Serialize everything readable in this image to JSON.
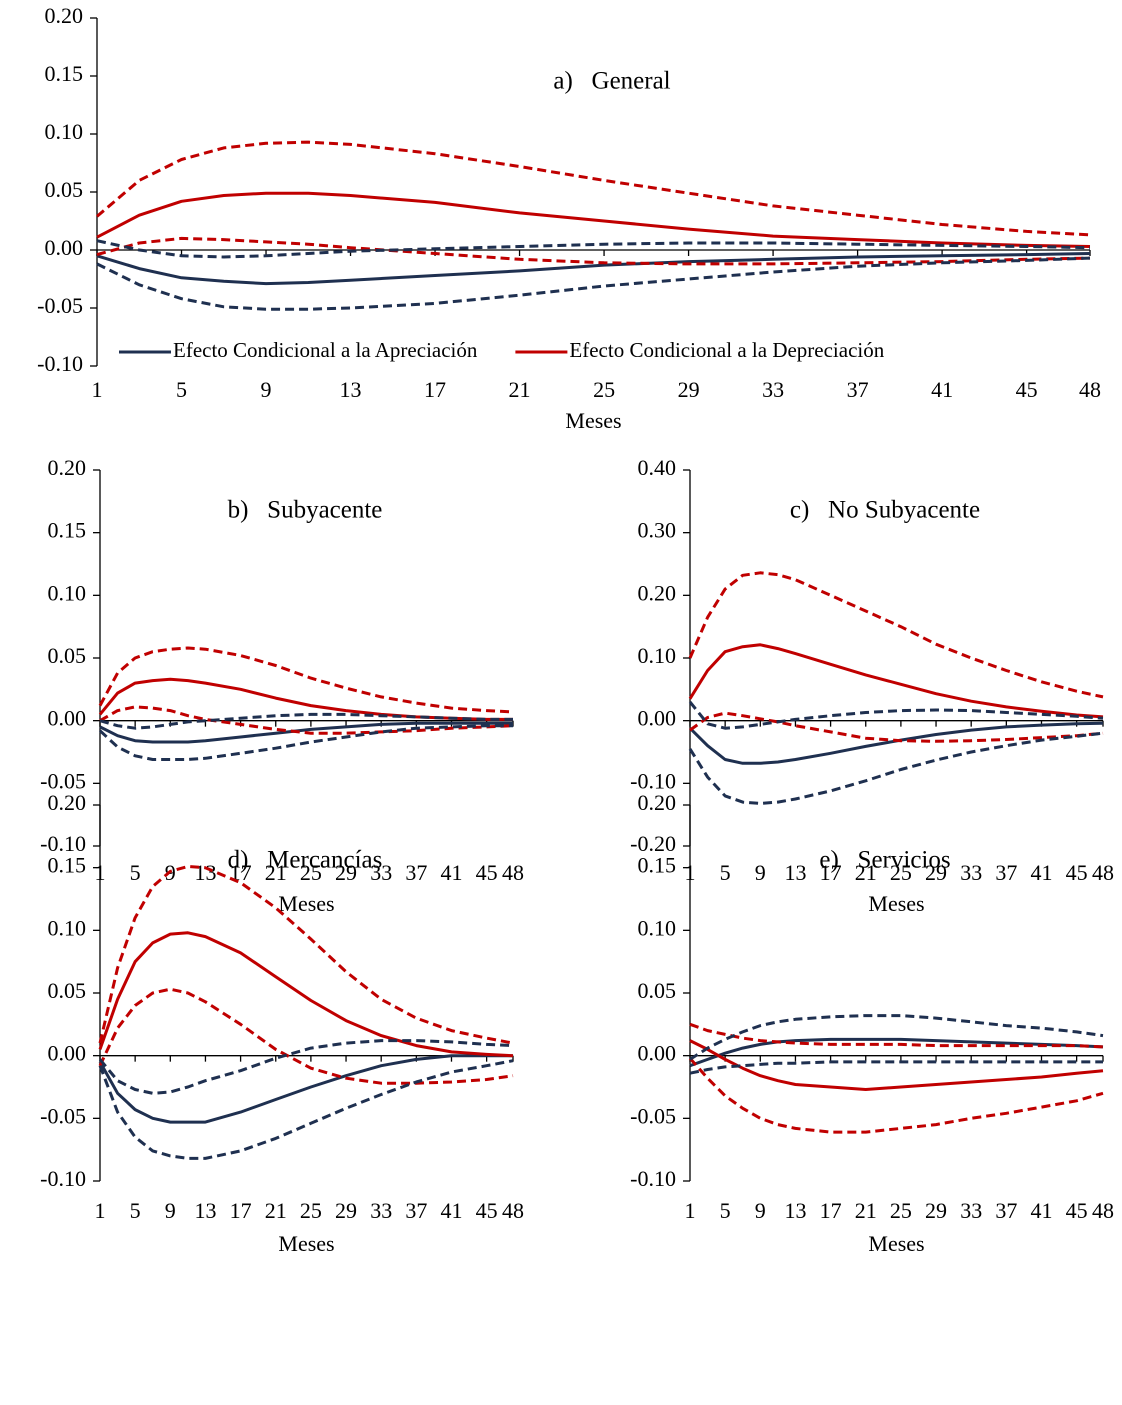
{
  "chart_data": [
    {
      "type": "line",
      "title": "a)   General",
      "xlabel": "Meses",
      "legend": "bottom",
      "x": [
        1,
        3,
        5,
        7,
        9,
        11,
        13,
        17,
        21,
        25,
        29,
        33,
        37,
        41,
        45,
        48
      ],
      "xlim": [
        1,
        48
      ],
      "xticks": [
        1,
        5,
        9,
        13,
        17,
        21,
        25,
        29,
        33,
        37,
        41,
        45,
        48
      ],
      "ylim": [
        -0.1,
        0.2
      ],
      "yticks": [
        {
          "value": -0.1,
          "label": "-0.10"
        },
        {
          "value": -0.05,
          "label": "-0.05"
        },
        {
          "value": 0,
          "label": "0.00"
        },
        {
          "value": 0.05,
          "label": "0.05"
        },
        {
          "value": 0.1,
          "label": "0.10"
        },
        {
          "value": 0.15,
          "label": "0.15"
        },
        {
          "value": 0.2,
          "label": "0.20"
        }
      ],
      "series": [
        {
          "name": "Efecto Condicional a la Apreciación",
          "color": "#1f3050",
          "dashed": false,
          "values": [
            -0.005,
            -0.016,
            -0.024,
            -0.027,
            -0.029,
            -0.028,
            -0.026,
            -0.022,
            -0.018,
            -0.013,
            -0.01,
            -0.008,
            -0.006,
            -0.005,
            -0.004,
            -0.003
          ]
        },
        {
          "name": "Efecto Condicional a la Depreciación",
          "color": "#c00000",
          "dashed": false,
          "values": [
            0.011,
            0.03,
            0.042,
            0.047,
            0.049,
            0.049,
            0.047,
            0.041,
            0.032,
            0.025,
            0.018,
            0.012,
            0.009,
            0.006,
            0.004,
            0.003
          ]
        },
        {
          "color": "#c00000",
          "dashed": true,
          "values": [
            0.029,
            0.06,
            0.078,
            0.088,
            0.092,
            0.093,
            0.091,
            0.083,
            0.072,
            0.06,
            0.049,
            0.038,
            0.03,
            0.022,
            0.016,
            0.013
          ]
        },
        {
          "color": "#c00000",
          "dashed": true,
          "values": [
            -0.004,
            0.006,
            0.01,
            0.009,
            0.007,
            0.005,
            0.002,
            -0.003,
            -0.008,
            -0.011,
            -0.012,
            -0.012,
            -0.011,
            -0.01,
            -0.008,
            -0.007
          ]
        },
        {
          "color": "#1f3050",
          "dashed": true,
          "values": [
            0.008,
            0.0,
            -0.005,
            -0.006,
            -0.005,
            -0.003,
            -0.001,
            0.001,
            0.003,
            0.005,
            0.006,
            0.006,
            0.005,
            0.004,
            0.003,
            0.002
          ]
        },
        {
          "color": "#1f3050",
          "dashed": true,
          "values": [
            -0.012,
            -0.03,
            -0.042,
            -0.049,
            -0.051,
            -0.051,
            -0.05,
            -0.046,
            -0.039,
            -0.031,
            -0.025,
            -0.019,
            -0.014,
            -0.011,
            -0.009,
            -0.007
          ]
        }
      ]
    },
    {
      "type": "line",
      "title": "b)   Subyacente",
      "xlabel": "Meses",
      "x": [
        1,
        3,
        5,
        7,
        9,
        11,
        13,
        17,
        21,
        25,
        29,
        33,
        37,
        41,
        45,
        48
      ],
      "xlim": [
        1,
        48
      ],
      "xticks": [
        1,
        5,
        9,
        13,
        17,
        21,
        25,
        29,
        33,
        37,
        41,
        45,
        48
      ],
      "ylim": [
        -0.1,
        0.2
      ],
      "yticks": [
        {
          "value": -0.1,
          "label": "-0.10"
        },
        {
          "value": -0.05,
          "label": "-0.05"
        },
        {
          "value": 0,
          "label": "0.00"
        },
        {
          "value": 0.05,
          "label": "0.05"
        },
        {
          "value": 0.1,
          "label": "0.10"
        },
        {
          "value": 0.15,
          "label": "0.15"
        },
        {
          "value": 0.2,
          "label": "0.20"
        }
      ],
      "series": [
        {
          "color": "#1f3050",
          "dashed": false,
          "values": [
            -0.005,
            -0.012,
            -0.016,
            -0.017,
            -0.017,
            -0.017,
            -0.016,
            -0.013,
            -0.01,
            -0.007,
            -0.005,
            -0.003,
            -0.002,
            -0.002,
            -0.002,
            -0.002
          ]
        },
        {
          "color": "#c00000",
          "dashed": false,
          "values": [
            0.005,
            0.022,
            0.03,
            0.032,
            0.033,
            0.032,
            0.03,
            0.025,
            0.018,
            0.012,
            0.008,
            0.005,
            0.003,
            0.002,
            0.001,
            0.001
          ]
        },
        {
          "color": "#c00000",
          "dashed": true,
          "values": [
            0.012,
            0.038,
            0.05,
            0.055,
            0.057,
            0.058,
            0.057,
            0.052,
            0.044,
            0.034,
            0.026,
            0.019,
            0.014,
            0.01,
            0.008,
            0.007
          ]
        },
        {
          "color": "#c00000",
          "dashed": true,
          "values": [
            0.0,
            0.008,
            0.011,
            0.01,
            0.008,
            0.004,
            0.001,
            -0.003,
            -0.007,
            -0.01,
            -0.01,
            -0.009,
            -0.008,
            -0.006,
            -0.005,
            -0.004
          ]
        },
        {
          "color": "#1f3050",
          "dashed": true,
          "values": [
            0.0,
            -0.004,
            -0.006,
            -0.005,
            -0.003,
            -0.001,
            0.0,
            0.002,
            0.004,
            0.005,
            0.005,
            0.004,
            0.003,
            0.002,
            0.001,
            0.001
          ]
        },
        {
          "color": "#1f3050",
          "dashed": true,
          "values": [
            -0.008,
            -0.021,
            -0.028,
            -0.031,
            -0.031,
            -0.031,
            -0.03,
            -0.026,
            -0.022,
            -0.017,
            -0.013,
            -0.009,
            -0.006,
            -0.005,
            -0.004,
            -0.004
          ]
        }
      ]
    },
    {
      "type": "line",
      "title": "c)   No Subyacente",
      "xlabel": "Meses",
      "x": [
        1,
        3,
        5,
        7,
        9,
        11,
        13,
        17,
        21,
        25,
        29,
        33,
        37,
        41,
        45,
        48
      ],
      "xlim": [
        1,
        48
      ],
      "xticks": [
        1,
        5,
        9,
        13,
        17,
        21,
        25,
        29,
        33,
        37,
        41,
        45,
        48
      ],
      "ylim": [
        -0.2,
        0.4
      ],
      "yticks": [
        {
          "value": -0.2,
          "label": "-0.20"
        },
        {
          "value": -0.1,
          "label": "-0.10"
        },
        {
          "value": 0,
          "label": "0.00"
        },
        {
          "value": 0.1,
          "label": "0.10"
        },
        {
          "value": 0.2,
          "label": "0.20"
        },
        {
          "value": 0.3,
          "label": "0.30"
        },
        {
          "value": 0.4,
          "label": "0.40"
        }
      ],
      "series": [
        {
          "color": "#1f3050",
          "dashed": false,
          "values": [
            -0.012,
            -0.04,
            -0.062,
            -0.068,
            -0.068,
            -0.066,
            -0.062,
            -0.052,
            -0.041,
            -0.031,
            -0.022,
            -0.015,
            -0.01,
            -0.007,
            -0.005,
            -0.004
          ]
        },
        {
          "color": "#c00000",
          "dashed": false,
          "values": [
            0.035,
            0.08,
            0.11,
            0.118,
            0.121,
            0.115,
            0.107,
            0.09,
            0.073,
            0.058,
            0.043,
            0.031,
            0.022,
            0.015,
            0.009,
            0.006
          ]
        },
        {
          "color": "#c00000",
          "dashed": true,
          "values": [
            0.1,
            0.165,
            0.21,
            0.232,
            0.236,
            0.233,
            0.225,
            0.2,
            0.175,
            0.15,
            0.122,
            0.1,
            0.08,
            0.062,
            0.047,
            0.038
          ]
        },
        {
          "color": "#c00000",
          "dashed": true,
          "values": [
            -0.015,
            0.005,
            0.012,
            0.008,
            0.003,
            -0.002,
            -0.008,
            -0.018,
            -0.028,
            -0.032,
            -0.033,
            -0.032,
            -0.03,
            -0.027,
            -0.024,
            -0.02
          ]
        },
        {
          "color": "#1f3050",
          "dashed": true,
          "values": [
            0.03,
            -0.005,
            -0.012,
            -0.01,
            -0.006,
            -0.002,
            0.002,
            0.008,
            0.013,
            0.016,
            0.017,
            0.016,
            0.013,
            0.01,
            0.007,
            0.004
          ]
        },
        {
          "color": "#1f3050",
          "dashed": true,
          "values": [
            -0.045,
            -0.09,
            -0.12,
            -0.13,
            -0.132,
            -0.13,
            -0.125,
            -0.112,
            -0.096,
            -0.078,
            -0.063,
            -0.05,
            -0.04,
            -0.031,
            -0.025,
            -0.02
          ]
        }
      ]
    },
    {
      "type": "line",
      "title": "d)   Mercancías",
      "xlabel": "Meses",
      "x": [
        1,
        3,
        5,
        7,
        9,
        11,
        13,
        17,
        21,
        25,
        29,
        33,
        37,
        41,
        45,
        48
      ],
      "xlim": [
        1,
        48
      ],
      "xticks": [
        1,
        5,
        9,
        13,
        17,
        21,
        25,
        29,
        33,
        37,
        41,
        45,
        48
      ],
      "ylim": [
        -0.1,
        0.2
      ],
      "yticks": [
        {
          "value": -0.1,
          "label": "-0.10"
        },
        {
          "value": -0.05,
          "label": "-0.05"
        },
        {
          "value": 0,
          "label": "0.00"
        },
        {
          "value": 0.05,
          "label": "0.05"
        },
        {
          "value": 0.1,
          "label": "0.10"
        },
        {
          "value": 0.15,
          "label": "0.15"
        },
        {
          "value": 0.2,
          "label": "0.20"
        }
      ],
      "series": [
        {
          "color": "#1f3050",
          "dashed": false,
          "values": [
            -0.005,
            -0.03,
            -0.043,
            -0.05,
            -0.053,
            -0.053,
            -0.053,
            -0.045,
            -0.035,
            -0.025,
            -0.016,
            -0.008,
            -0.003,
            0.0,
            0.0,
            0.0
          ]
        },
        {
          "color": "#c00000",
          "dashed": false,
          "values": [
            0.005,
            0.045,
            0.075,
            0.09,
            0.097,
            0.098,
            0.095,
            0.082,
            0.063,
            0.044,
            0.028,
            0.016,
            0.008,
            0.003,
            0.001,
            0.0
          ]
        },
        {
          "color": "#c00000",
          "dashed": true,
          "values": [
            0.01,
            0.07,
            0.11,
            0.135,
            0.147,
            0.151,
            0.15,
            0.138,
            0.118,
            0.093,
            0.067,
            0.045,
            0.03,
            0.02,
            0.014,
            0.01
          ]
        },
        {
          "color": "#c00000",
          "dashed": true,
          "values": [
            -0.008,
            0.022,
            0.04,
            0.05,
            0.053,
            0.05,
            0.043,
            0.025,
            0.005,
            -0.01,
            -0.018,
            -0.022,
            -0.022,
            -0.021,
            -0.019,
            -0.016
          ]
        },
        {
          "color": "#1f3050",
          "dashed": true,
          "values": [
            -0.003,
            -0.02,
            -0.027,
            -0.03,
            -0.029,
            -0.025,
            -0.02,
            -0.012,
            -0.002,
            0.006,
            0.01,
            0.012,
            0.012,
            0.011,
            0.009,
            0.008
          ]
        },
        {
          "color": "#1f3050",
          "dashed": true,
          "values": [
            -0.008,
            -0.045,
            -0.065,
            -0.076,
            -0.08,
            -0.082,
            -0.082,
            -0.076,
            -0.066,
            -0.054,
            -0.042,
            -0.031,
            -0.021,
            -0.013,
            -0.008,
            -0.004
          ]
        }
      ]
    },
    {
      "type": "line",
      "title": "e)   Servicios",
      "xlabel": "Meses",
      "x": [
        1,
        3,
        5,
        7,
        9,
        11,
        13,
        17,
        21,
        25,
        29,
        33,
        37,
        41,
        45,
        48
      ],
      "xlim": [
        1,
        48
      ],
      "xticks": [
        1,
        5,
        9,
        13,
        17,
        21,
        25,
        29,
        33,
        37,
        41,
        45,
        48
      ],
      "ylim": [
        -0.1,
        0.2
      ],
      "yticks": [
        {
          "value": -0.1,
          "label": "-0.10"
        },
        {
          "value": -0.05,
          "label": "-0.05"
        },
        {
          "value": 0,
          "label": "0.00"
        },
        {
          "value": 0.05,
          "label": "0.05"
        },
        {
          "value": 0.1,
          "label": "0.10"
        },
        {
          "value": 0.15,
          "label": "0.15"
        },
        {
          "value": 0.2,
          "label": "0.20"
        }
      ],
      "series": [
        {
          "color": "#1f3050",
          "dashed": false,
          "values": [
            -0.008,
            -0.003,
            0.002,
            0.006,
            0.009,
            0.011,
            0.012,
            0.013,
            0.013,
            0.013,
            0.012,
            0.011,
            0.01,
            0.009,
            0.008,
            0.007
          ]
        },
        {
          "color": "#c00000",
          "dashed": false,
          "values": [
            0.012,
            0.005,
            -0.003,
            -0.01,
            -0.016,
            -0.02,
            -0.023,
            -0.025,
            -0.027,
            -0.025,
            -0.023,
            -0.021,
            -0.019,
            -0.017,
            -0.014,
            -0.012
          ]
        },
        {
          "color": "#c00000",
          "dashed": true,
          "values": [
            0.025,
            0.02,
            0.017,
            0.014,
            0.012,
            0.011,
            0.01,
            0.009,
            0.009,
            0.009,
            0.008,
            0.008,
            0.008,
            0.008,
            0.008,
            0.007
          ]
        },
        {
          "color": "#c00000",
          "dashed": true,
          "values": [
            -0.002,
            -0.018,
            -0.032,
            -0.042,
            -0.05,
            -0.055,
            -0.058,
            -0.061,
            -0.061,
            -0.058,
            -0.055,
            -0.05,
            -0.046,
            -0.041,
            -0.036,
            -0.03
          ]
        },
        {
          "color": "#1f3050",
          "dashed": true,
          "values": [
            -0.003,
            0.006,
            0.013,
            0.019,
            0.024,
            0.027,
            0.029,
            0.031,
            0.032,
            0.032,
            0.03,
            0.027,
            0.024,
            0.022,
            0.019,
            0.016
          ]
        },
        {
          "color": "#1f3050",
          "dashed": true,
          "values": [
            -0.014,
            -0.011,
            -0.009,
            -0.008,
            -0.007,
            -0.006,
            -0.006,
            -0.005,
            -0.005,
            -0.005,
            -0.005,
            -0.005,
            -0.005,
            -0.005,
            -0.005,
            -0.005
          ]
        }
      ]
    }
  ]
}
